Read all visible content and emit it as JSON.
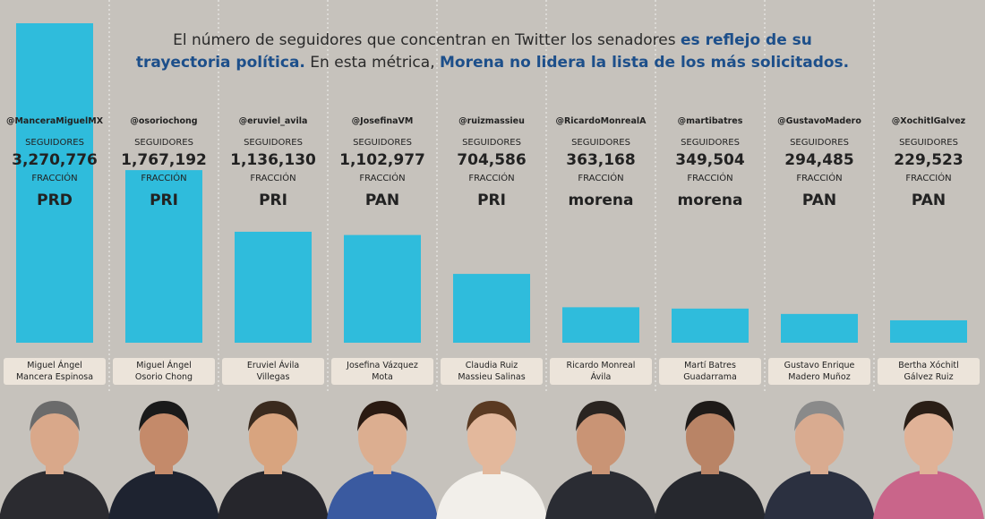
{
  "title": {
    "part1": "El número de seguidores que concentran en Twitter los senadores ",
    "highlight1": "es reflejo de su trayectoria política.",
    "part2": " En esta métrica, ",
    "highlight2": "Morena no lidera la lista de los más solicitados."
  },
  "labels": {
    "followers": "SEGUIDORES",
    "faction": "FRACCIÓN"
  },
  "colors": {
    "bar": "#2fbcdc",
    "background": "#c6c2bc",
    "name_box": "#ece4da",
    "highlight": "#1d4f8a"
  },
  "chart_data": {
    "type": "bar",
    "categories": [
      "@ManceraMiguelMX",
      "@osoriochong",
      "@eruviel_avila",
      "@JosefinaVM",
      "@ruizmassieu",
      "@RicardoMonrealA",
      "@martibatres",
      "@GustavoMadero",
      "@XochitlGalvez"
    ],
    "values": [
      3270776,
      1767192,
      1136130,
      1102977,
      704586,
      363168,
      349504,
      294485,
      229523
    ],
    "value_labels": [
      "3,270,776",
      "1,767,192",
      "1,136,130",
      "1,102,977",
      "704,586",
      "363,168",
      "349,504",
      "294,485",
      "229,523"
    ],
    "parties": [
      "PRD",
      "PRI",
      "PRI",
      "PAN",
      "PRI",
      "morena",
      "morena",
      "PAN",
      "PAN"
    ],
    "names": [
      [
        "Miguel Ángel",
        "Mancera Espinosa"
      ],
      [
        "Miguel Ángel",
        "Osorio Chong"
      ],
      [
        "Eruviel Ávila",
        "Villegas"
      ],
      [
        "Josefina Vázquez",
        "Mota"
      ],
      [
        "Claudia Ruiz",
        "Massieu Salinas"
      ],
      [
        "Ricardo Monreal",
        "Ávila"
      ],
      [
        "Martí Batres",
        "Guadarrama"
      ],
      [
        "Gustavo Enrique",
        "Madero Muñoz"
      ],
      [
        "Bertha Xóchitl",
        "Gálvez Ruiz"
      ]
    ],
    "grid": false
  }
}
